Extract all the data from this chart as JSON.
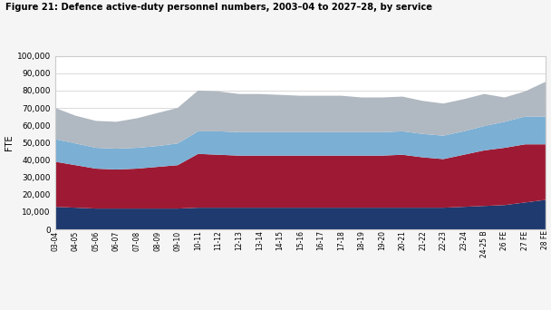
{
  "title": "Figure 21: Defence active-duty personnel numbers, 2003–04 to 2027–28, by service",
  "ylabel": "FTE",
  "ylim": [
    0,
    100000
  ],
  "yticks": [
    0,
    10000,
    20000,
    30000,
    40000,
    50000,
    60000,
    70000,
    80000,
    90000,
    100000
  ],
  "categories": [
    "03-04",
    "04-05",
    "05-06",
    "06-07",
    "07-08",
    "08-09",
    "09-10",
    "10-11",
    "11-12",
    "12-13",
    "13-14",
    "14-15",
    "15-16",
    "16-17",
    "17-18",
    "18-19",
    "19-20",
    "20-21",
    "21-22",
    "22-23",
    "23-24",
    "24-25 B",
    "26 FE",
    "27 FE",
    "28 FE"
  ],
  "navy": [
    13000,
    12500,
    12000,
    12000,
    12000,
    12000,
    12000,
    12500,
    12500,
    12500,
    12500,
    12500,
    12500,
    12500,
    12500,
    12500,
    12500,
    12500,
    12500,
    12500,
    13000,
    13500,
    14000,
    15500,
    17000
  ],
  "army": [
    26000,
    24500,
    23000,
    22500,
    23000,
    24000,
    25000,
    31000,
    30500,
    30000,
    30000,
    30000,
    30000,
    30000,
    30000,
    30000,
    30000,
    30500,
    29000,
    28000,
    30000,
    32000,
    33000,
    33500,
    32000
  ],
  "airforce": [
    13000,
    12500,
    12000,
    12000,
    12000,
    12000,
    12500,
    13000,
    13500,
    13500,
    13500,
    13500,
    13500,
    13500,
    13500,
    13500,
    13500,
    13500,
    13500,
    13500,
    13500,
    14000,
    15000,
    16000,
    16000
  ],
  "civilian": [
    18000,
    16000,
    15500,
    15500,
    17000,
    19000,
    20500,
    23500,
    23000,
    22000,
    22000,
    21500,
    21000,
    21000,
    21000,
    20000,
    20000,
    20000,
    19000,
    18500,
    18500,
    18500,
    14000,
    14500,
    20000
  ],
  "navy_color": "#1f3a6e",
  "army_color": "#9e1a34",
  "airforce_color": "#7bafd4",
  "civilian_color": "#b0b8c1",
  "bg_color": "#f5f5f5",
  "plot_bg_color": "#ffffff",
  "border_color": "#cccccc",
  "grid_color": "#cccccc"
}
